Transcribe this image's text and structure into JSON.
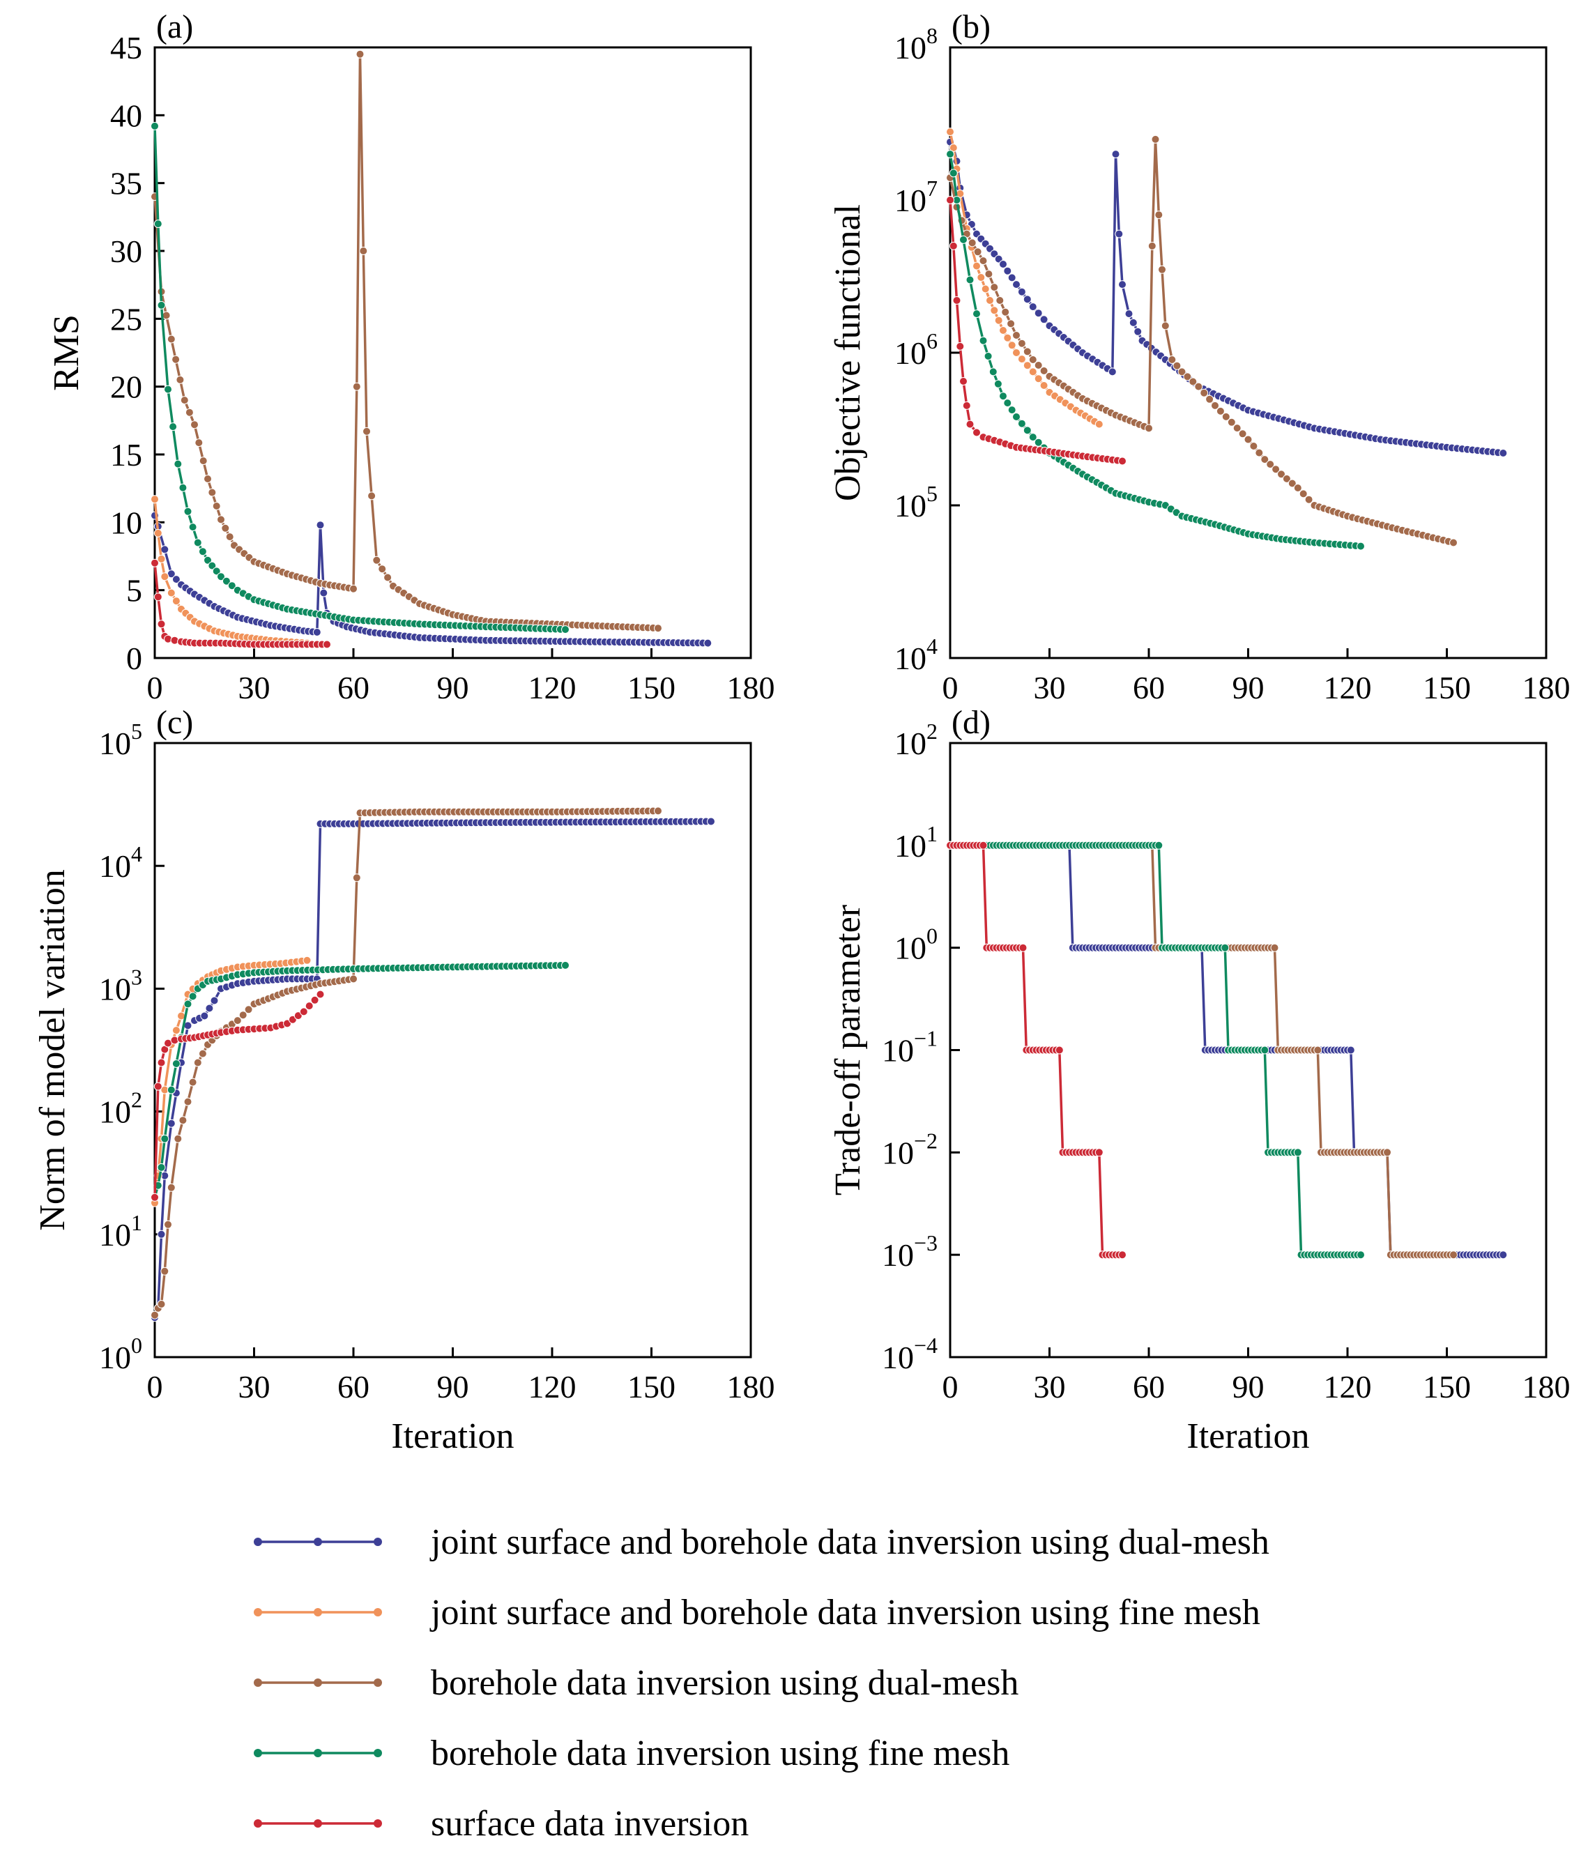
{
  "chart_data": [
    {
      "panel_label": "(a)",
      "type": "line",
      "ylabel": "RMS",
      "xlabel": "",
      "yscale": "linear",
      "xlim": [
        0,
        180
      ],
      "ylim": [
        0,
        45
      ],
      "x_ticks": [
        "0",
        "30",
        "60",
        "90",
        "120",
        "150",
        "180"
      ],
      "y_ticks": [
        "0",
        "5",
        "10",
        "15",
        "20",
        "25",
        "30",
        "35",
        "40",
        "45"
      ],
      "series": [
        {
          "name": "joint surface and borehole data inversion using dual-mesh",
          "x": [
            0,
            1,
            3,
            5,
            8,
            12,
            18,
            25,
            35,
            45,
            49,
            50,
            51,
            52,
            54,
            58,
            65,
            80,
            100,
            130,
            167
          ],
          "y": [
            10.5,
            9.7,
            8,
            6.2,
            5.4,
            4.7,
            3.8,
            3.0,
            2.4,
            2.0,
            1.9,
            9.8,
            4.8,
            3.3,
            2.7,
            2.3,
            1.9,
            1.5,
            1.3,
            1.2,
            1.1
          ]
        },
        {
          "name": "joint surface and borehole data inversion using fine mesh",
          "x": [
            0,
            1,
            2,
            3,
            5,
            8,
            12,
            18,
            25,
            35,
            46
          ],
          "y": [
            11.7,
            9.2,
            7.3,
            6.0,
            4.8,
            3.6,
            2.7,
            2.0,
            1.6,
            1.3,
            1.1
          ]
        },
        {
          "name": "borehole data inversion using dual-mesh",
          "x": [
            0,
            2,
            5,
            9,
            12,
            16,
            20,
            24,
            30,
            40,
            50,
            60,
            61,
            62,
            63,
            64,
            67,
            72,
            80,
            90,
            100,
            120,
            152
          ],
          "y": [
            34,
            27,
            23.5,
            19,
            17.2,
            13.2,
            10.2,
            8.3,
            7.1,
            6.2,
            5.5,
            5.1,
            20,
            44.5,
            30,
            16.7,
            7.2,
            5.3,
            4.0,
            3.2,
            2.7,
            2.5,
            2.2
          ]
        },
        {
          "name": "borehole data inversion using fine mesh",
          "x": [
            0,
            1,
            2,
            4,
            7,
            10,
            13,
            16,
            20,
            25,
            30,
            40,
            50,
            60,
            80,
            100,
            124
          ],
          "y": [
            39.2,
            32,
            26,
            19.8,
            14.3,
            10.8,
            8.5,
            7.2,
            6.0,
            5.0,
            4.3,
            3.6,
            3.2,
            2.8,
            2.5,
            2.3,
            2.1
          ]
        },
        {
          "name": "surface data inversion",
          "x": [
            0,
            1,
            2,
            3,
            4,
            6,
            8,
            12,
            20,
            30,
            40,
            52
          ],
          "y": [
            7.0,
            4.5,
            2.5,
            1.6,
            1.4,
            1.3,
            1.2,
            1.1,
            1.1,
            1.0,
            1.0,
            1.0
          ]
        }
      ]
    },
    {
      "panel_label": "(b)",
      "type": "line",
      "ylabel": "Objective functional",
      "xlabel": "",
      "yscale": "log",
      "xlim": [
        0,
        180
      ],
      "ylim": [
        4,
        8
      ],
      "x_ticks": [
        "0",
        "30",
        "60",
        "90",
        "120",
        "150",
        "180"
      ],
      "y_tick_exponents": [
        "4",
        "5",
        "6",
        "7",
        "8"
      ],
      "series": [
        {
          "name": "joint surface and borehole data inversion using dual-mesh",
          "x": [
            0,
            1,
            2,
            3,
            5,
            8,
            12,
            16,
            20,
            25,
            30,
            40,
            49,
            50,
            51,
            52,
            54,
            58,
            65,
            75,
            90,
            110,
            130,
            150,
            167
          ],
          "y": [
            24000000,
            22000000,
            18000000,
            12000000,
            8000000,
            6000000,
            4800000,
            3800000,
            2800000,
            2000000,
            1500000,
            1000000,
            750000,
            20000000,
            6000000,
            2800000,
            1800000,
            1200000,
            900000,
            600000,
            420000,
            320000,
            270000,
            240000,
            220000
          ]
        },
        {
          "name": "joint surface and borehole data inversion using fine mesh",
          "x": [
            0,
            1,
            2,
            3,
            5,
            8,
            12,
            16,
            20,
            25,
            30,
            38,
            45
          ],
          "y": [
            28000000,
            22000000,
            16000000,
            11000000,
            6500000,
            3700000,
            2200000,
            1400000,
            1000000,
            750000,
            550000,
            420000,
            340000
          ]
        },
        {
          "name": "borehole data inversion using dual-mesh",
          "x": [
            0,
            2,
            5,
            10,
            15,
            20,
            25,
            30,
            40,
            50,
            60,
            61,
            62,
            63,
            64,
            65,
            67,
            70,
            75,
            80,
            85,
            90,
            95,
            100,
            105,
            110,
            120,
            135,
            152
          ],
          "y": [
            14000000,
            9000000,
            6000000,
            4000000,
            2200000,
            1300000,
            900000,
            700000,
            500000,
            390000,
            320000,
            5000000,
            25000000,
            8000000,
            3500000,
            1500000,
            900000,
            750000,
            600000,
            450000,
            350000,
            270000,
            200000,
            160000,
            130000,
            100000,
            85000,
            70000,
            57000
          ]
        },
        {
          "name": "borehole data inversion using fine mesh",
          "x": [
            0,
            1,
            2,
            4,
            6,
            8,
            10,
            13,
            16,
            20,
            25,
            30,
            40,
            50,
            60,
            65,
            70,
            80,
            90,
            100,
            110,
            124
          ],
          "y": [
            20000000,
            15000000,
            10000000,
            5500000,
            3000000,
            1800000,
            1200000,
            750000,
            520000,
            380000,
            280000,
            220000,
            160000,
            120000,
            105000,
            100000,
            85000,
            75000,
            65000,
            60000,
            57000,
            54000
          ]
        },
        {
          "name": "surface data inversion",
          "x": [
            0,
            1,
            2,
            3,
            4,
            5,
            6,
            8,
            10,
            15,
            20,
            30,
            40,
            52
          ],
          "y": [
            10000000,
            5000000,
            2200000,
            1100000,
            650000,
            450000,
            340000,
            300000,
            280000,
            260000,
            240000,
            225000,
            210000,
            195000
          ]
        }
      ]
    },
    {
      "panel_label": "(c)",
      "type": "line",
      "ylabel": "Norm of model variation",
      "xlabel": "Iteration",
      "yscale": "log",
      "xlim": [
        0,
        180
      ],
      "ylim": [
        0,
        5
      ],
      "x_ticks": [
        "0",
        "30",
        "60",
        "90",
        "120",
        "150",
        "180"
      ],
      "y_tick_exponents": [
        "0",
        "1",
        "2",
        "3",
        "4",
        "5"
      ],
      "series": [
        {
          "name": "joint surface and borehole data inversion using dual-mesh",
          "x": [
            0,
            1,
            2,
            3,
            5,
            8,
            10,
            12,
            15,
            18,
            20,
            25,
            30,
            40,
            49,
            50,
            60,
            100,
            168
          ],
          "y": [
            2.1,
            2.5,
            10,
            30,
            80,
            250,
            500,
            550,
            600,
            800,
            1000,
            1100,
            1150,
            1200,
            1200,
            22000,
            22000,
            22500,
            23000
          ]
        },
        {
          "name": "joint surface and borehole data inversion using fine mesh",
          "x": [
            0,
            1,
            2,
            3,
            5,
            8,
            10,
            13,
            16,
            20,
            25,
            30,
            38,
            46
          ],
          "y": [
            18,
            30,
            60,
            150,
            350,
            600,
            900,
            1100,
            1250,
            1400,
            1500,
            1550,
            1600,
            1700
          ]
        },
        {
          "name": "borehole data inversion using dual-mesh",
          "x": [
            0,
            1,
            2,
            3,
            4,
            5,
            7,
            10,
            13,
            16,
            20,
            25,
            30,
            40,
            50,
            60,
            61,
            62,
            80,
            120,
            152
          ],
          "y": [
            2.2,
            2.5,
            2.7,
            5,
            12,
            24,
            60,
            120,
            250,
            350,
            450,
            550,
            750,
            950,
            1100,
            1200,
            8000,
            27000,
            27500,
            27500,
            28000
          ]
        },
        {
          "name": "borehole data inversion using fine mesh",
          "x": [
            0,
            1,
            2,
            3,
            5,
            8,
            10,
            13,
            16,
            20,
            25,
            30,
            40,
            60,
            90,
            124
          ],
          "y": [
            20,
            25,
            35,
            60,
            150,
            400,
            750,
            1000,
            1150,
            1200,
            1300,
            1350,
            1400,
            1450,
            1500,
            1550
          ]
        },
        {
          "name": "surface data inversion",
          "x": [
            0,
            1,
            2,
            3,
            4,
            6,
            8,
            12,
            16,
            20,
            25,
            30,
            35,
            40,
            45,
            50
          ],
          "y": [
            20,
            160,
            250,
            320,
            360,
            380,
            390,
            400,
            420,
            440,
            460,
            470,
            480,
            520,
            650,
            900
          ]
        }
      ]
    },
    {
      "panel_label": "(d)",
      "type": "line",
      "ylabel": "Trade-off parameter",
      "xlabel": "Iteration",
      "yscale": "log",
      "xlim": [
        0,
        180
      ],
      "ylim": [
        -4,
        2
      ],
      "x_ticks": [
        "0",
        "30",
        "60",
        "90",
        "120",
        "150",
        "180"
      ],
      "y_tick_exponents": [
        "-4",
        "-3",
        "-2",
        "-1",
        "0",
        "1",
        "2"
      ],
      "series": [
        {
          "name": "joint surface and borehole data inversion using dual-mesh",
          "steps": [
            [
              0,
              36,
              10
            ],
            [
              37,
              76,
              1
            ],
            [
              77,
              121,
              0.1
            ],
            [
              122,
              132,
              0.01
            ],
            [
              133,
              167,
              0.001
            ]
          ]
        },
        {
          "name": "joint surface and borehole data inversion using fine mesh",
          "steps": [
            [
              0,
              12,
              10
            ]
          ]
        },
        {
          "name": "borehole data inversion using dual-mesh",
          "steps": [
            [
              0,
              61,
              10
            ],
            [
              62,
              98,
              1
            ],
            [
              99,
              111,
              0.1
            ],
            [
              112,
              132,
              0.01
            ],
            [
              133,
              152,
              0.001
            ]
          ]
        },
        {
          "name": "borehole data inversion using fine mesh",
          "steps": [
            [
              0,
              63,
              10
            ],
            [
              64,
              83,
              1
            ],
            [
              84,
              95,
              0.1
            ],
            [
              96,
              105,
              0.01
            ],
            [
              106,
              124,
              0.001
            ]
          ]
        },
        {
          "name": "surface data inversion",
          "steps": [
            [
              0,
              10,
              10
            ],
            [
              11,
              22,
              1
            ],
            [
              23,
              33,
              0.1
            ],
            [
              34,
              45,
              0.01
            ],
            [
              46,
              52,
              0.001
            ]
          ]
        }
      ]
    }
  ],
  "colors": {
    "dual_joint": "#3d3f96",
    "fine_joint": "#f0925a",
    "dual_borehole": "#a36a4b",
    "fine_borehole": "#0f8a5f",
    "surface": "#cc2a36"
  },
  "legend": [
    {
      "key": "dual_joint",
      "label": "joint surface and borehole data inversion using dual-mesh"
    },
    {
      "key": "fine_joint",
      "label": "joint surface and borehole data inversion using fine mesh"
    },
    {
      "key": "dual_borehole",
      "label": "borehole data inversion using dual-mesh"
    },
    {
      "key": "fine_borehole",
      "label": "borehole data inversion using fine mesh"
    },
    {
      "key": "surface",
      "label": "surface data inversion"
    }
  ]
}
